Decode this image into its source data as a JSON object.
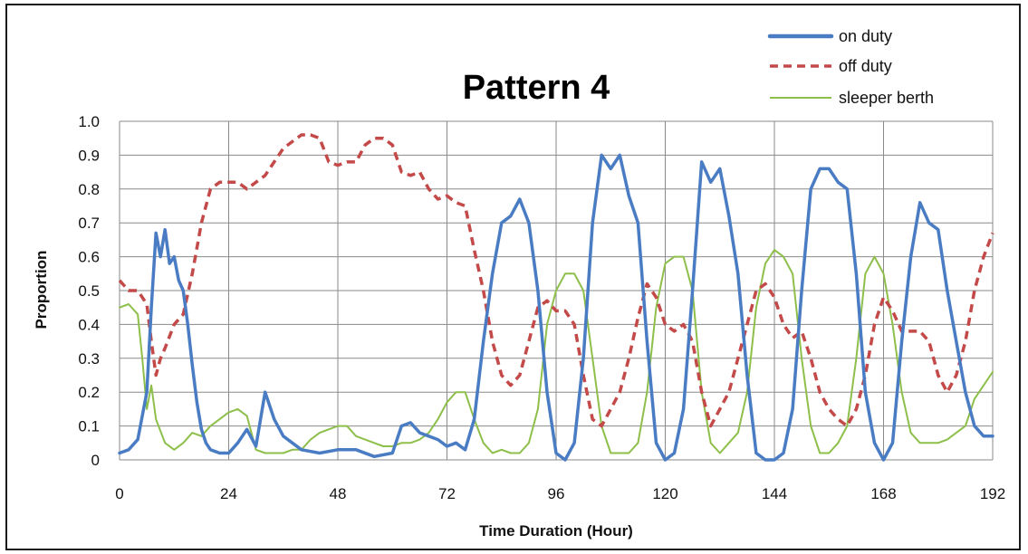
{
  "chart_data": {
    "type": "line",
    "title": "Pattern 4",
    "xlabel": "Time Duration (Hour)",
    "ylabel": "Proportion",
    "xlim": [
      0,
      192
    ],
    "ylim": [
      0,
      1
    ],
    "x_ticks": [
      0,
      24,
      48,
      72,
      96,
      120,
      144,
      168,
      192
    ],
    "x_tick_labels": [
      "0",
      "24",
      "48",
      "72",
      "96",
      "120",
      "144",
      "168",
      "192"
    ],
    "y_ticks": [
      0,
      0.1,
      0.2,
      0.3,
      0.4,
      0.5,
      0.6,
      0.7,
      0.8,
      0.9,
      1.0
    ],
    "y_tick_labels": [
      "0",
      "0.1",
      "0.2",
      "0.3",
      "0.4",
      "0.5",
      "0.6",
      "0.7",
      "0.8",
      "0.9",
      "1.0"
    ],
    "grid": true,
    "legend_position": "top-right",
    "series": [
      {
        "name": "on duty",
        "color": "#4a7cc4",
        "style": "solid",
        "x": [
          0,
          2,
          4,
          6,
          7,
          8,
          9,
          10,
          11,
          12,
          13,
          14,
          15,
          16,
          17,
          18,
          19,
          20,
          22,
          24,
          26,
          28,
          30,
          32,
          34,
          36,
          38,
          40,
          44,
          48,
          52,
          56,
          60,
          62,
          64,
          66,
          68,
          70,
          72,
          74,
          76,
          78,
          80,
          82,
          84,
          86,
          88,
          90,
          92,
          94,
          96,
          98,
          100,
          102,
          104,
          106,
          108,
          110,
          112,
          114,
          116,
          118,
          120,
          122,
          124,
          126,
          128,
          130,
          132,
          134,
          136,
          138,
          140,
          142,
          144,
          146,
          148,
          150,
          152,
          154,
          156,
          158,
          160,
          162,
          164,
          166,
          168,
          170,
          172,
          174,
          176,
          178,
          180,
          182,
          184,
          186,
          188,
          190,
          192
        ],
        "values": [
          0.02,
          0.03,
          0.06,
          0.2,
          0.45,
          0.67,
          0.6,
          0.68,
          0.58,
          0.6,
          0.53,
          0.5,
          0.4,
          0.28,
          0.17,
          0.09,
          0.05,
          0.03,
          0.02,
          0.02,
          0.05,
          0.09,
          0.04,
          0.2,
          0.12,
          0.07,
          0.05,
          0.03,
          0.02,
          0.03,
          0.03,
          0.01,
          0.02,
          0.1,
          0.11,
          0.08,
          0.07,
          0.06,
          0.04,
          0.05,
          0.03,
          0.12,
          0.35,
          0.55,
          0.7,
          0.72,
          0.77,
          0.7,
          0.5,
          0.2,
          0.02,
          0.0,
          0.05,
          0.3,
          0.7,
          0.9,
          0.86,
          0.9,
          0.78,
          0.7,
          0.35,
          0.05,
          0.0,
          0.02,
          0.15,
          0.5,
          0.88,
          0.82,
          0.86,
          0.72,
          0.55,
          0.25,
          0.02,
          0.0,
          0.0,
          0.02,
          0.15,
          0.5,
          0.8,
          0.86,
          0.86,
          0.82,
          0.8,
          0.55,
          0.2,
          0.05,
          0.0,
          0.05,
          0.35,
          0.6,
          0.76,
          0.7,
          0.68,
          0.5,
          0.35,
          0.2,
          0.1,
          0.07,
          0.07
        ]
      },
      {
        "name": "off duty",
        "color": "#c44a4a",
        "style": "dashed",
        "x": [
          0,
          2,
          4,
          6,
          7,
          8,
          9,
          10,
          12,
          14,
          16,
          18,
          20,
          22,
          24,
          26,
          28,
          30,
          32,
          34,
          36,
          38,
          40,
          42,
          44,
          46,
          48,
          50,
          52,
          54,
          56,
          58,
          60,
          62,
          64,
          66,
          68,
          70,
          72,
          74,
          76,
          78,
          80,
          82,
          84,
          86,
          88,
          90,
          92,
          94,
          96,
          98,
          100,
          102,
          104,
          106,
          108,
          110,
          112,
          114,
          116,
          118,
          120,
          122,
          124,
          126,
          128,
          130,
          132,
          134,
          136,
          138,
          140,
          142,
          144,
          146,
          148,
          150,
          152,
          154,
          156,
          158,
          160,
          162,
          164,
          166,
          168,
          170,
          172,
          174,
          176,
          178,
          180,
          182,
          184,
          186,
          188,
          190,
          192
        ],
        "values": [
          0.53,
          0.5,
          0.5,
          0.46,
          0.35,
          0.25,
          0.3,
          0.33,
          0.4,
          0.43,
          0.55,
          0.7,
          0.8,
          0.82,
          0.82,
          0.82,
          0.8,
          0.82,
          0.84,
          0.88,
          0.92,
          0.94,
          0.96,
          0.96,
          0.95,
          0.88,
          0.87,
          0.88,
          0.88,
          0.93,
          0.95,
          0.95,
          0.93,
          0.85,
          0.84,
          0.85,
          0.8,
          0.77,
          0.78,
          0.76,
          0.75,
          0.62,
          0.5,
          0.35,
          0.25,
          0.22,
          0.25,
          0.35,
          0.45,
          0.47,
          0.44,
          0.44,
          0.4,
          0.25,
          0.12,
          0.1,
          0.15,
          0.2,
          0.3,
          0.42,
          0.52,
          0.48,
          0.4,
          0.38,
          0.4,
          0.35,
          0.2,
          0.1,
          0.15,
          0.2,
          0.3,
          0.4,
          0.5,
          0.52,
          0.48,
          0.4,
          0.36,
          0.38,
          0.3,
          0.2,
          0.15,
          0.12,
          0.1,
          0.15,
          0.25,
          0.4,
          0.48,
          0.44,
          0.38,
          0.38,
          0.38,
          0.35,
          0.25,
          0.2,
          0.25,
          0.35,
          0.5,
          0.6,
          0.67
        ]
      },
      {
        "name": "sleeper berth",
        "color": "#8dbf4a",
        "style": "solid",
        "x": [
          0,
          2,
          4,
          5,
          6,
          7,
          8,
          10,
          12,
          14,
          16,
          18,
          20,
          22,
          24,
          26,
          28,
          30,
          32,
          34,
          36,
          38,
          40,
          42,
          44,
          48,
          50,
          52,
          54,
          56,
          58,
          60,
          62,
          64,
          66,
          68,
          70,
          72,
          74,
          76,
          78,
          80,
          82,
          84,
          86,
          88,
          90,
          92,
          94,
          96,
          98,
          100,
          102,
          104,
          106,
          108,
          110,
          112,
          114,
          116,
          118,
          120,
          122,
          124,
          126,
          128,
          130,
          132,
          134,
          136,
          138,
          140,
          142,
          144,
          146,
          148,
          150,
          152,
          154,
          156,
          158,
          160,
          162,
          164,
          166,
          168,
          170,
          172,
          174,
          176,
          178,
          180,
          182,
          184,
          186,
          188,
          190,
          192
        ],
        "values": [
          0.45,
          0.46,
          0.43,
          0.3,
          0.15,
          0.22,
          0.12,
          0.05,
          0.03,
          0.05,
          0.08,
          0.07,
          0.1,
          0.12,
          0.14,
          0.15,
          0.13,
          0.03,
          0.02,
          0.02,
          0.02,
          0.03,
          0.03,
          0.06,
          0.08,
          0.1,
          0.1,
          0.07,
          0.06,
          0.05,
          0.04,
          0.04,
          0.05,
          0.05,
          0.06,
          0.08,
          0.12,
          0.17,
          0.2,
          0.2,
          0.12,
          0.05,
          0.02,
          0.03,
          0.02,
          0.02,
          0.05,
          0.15,
          0.4,
          0.5,
          0.55,
          0.55,
          0.5,
          0.3,
          0.1,
          0.02,
          0.02,
          0.02,
          0.05,
          0.2,
          0.45,
          0.58,
          0.6,
          0.6,
          0.5,
          0.2,
          0.05,
          0.02,
          0.05,
          0.08,
          0.2,
          0.45,
          0.58,
          0.62,
          0.6,
          0.55,
          0.3,
          0.1,
          0.02,
          0.02,
          0.05,
          0.1,
          0.3,
          0.55,
          0.6,
          0.55,
          0.4,
          0.2,
          0.08,
          0.05,
          0.05,
          0.05,
          0.06,
          0.08,
          0.1,
          0.18,
          0.22,
          0.26
        ]
      }
    ]
  }
}
